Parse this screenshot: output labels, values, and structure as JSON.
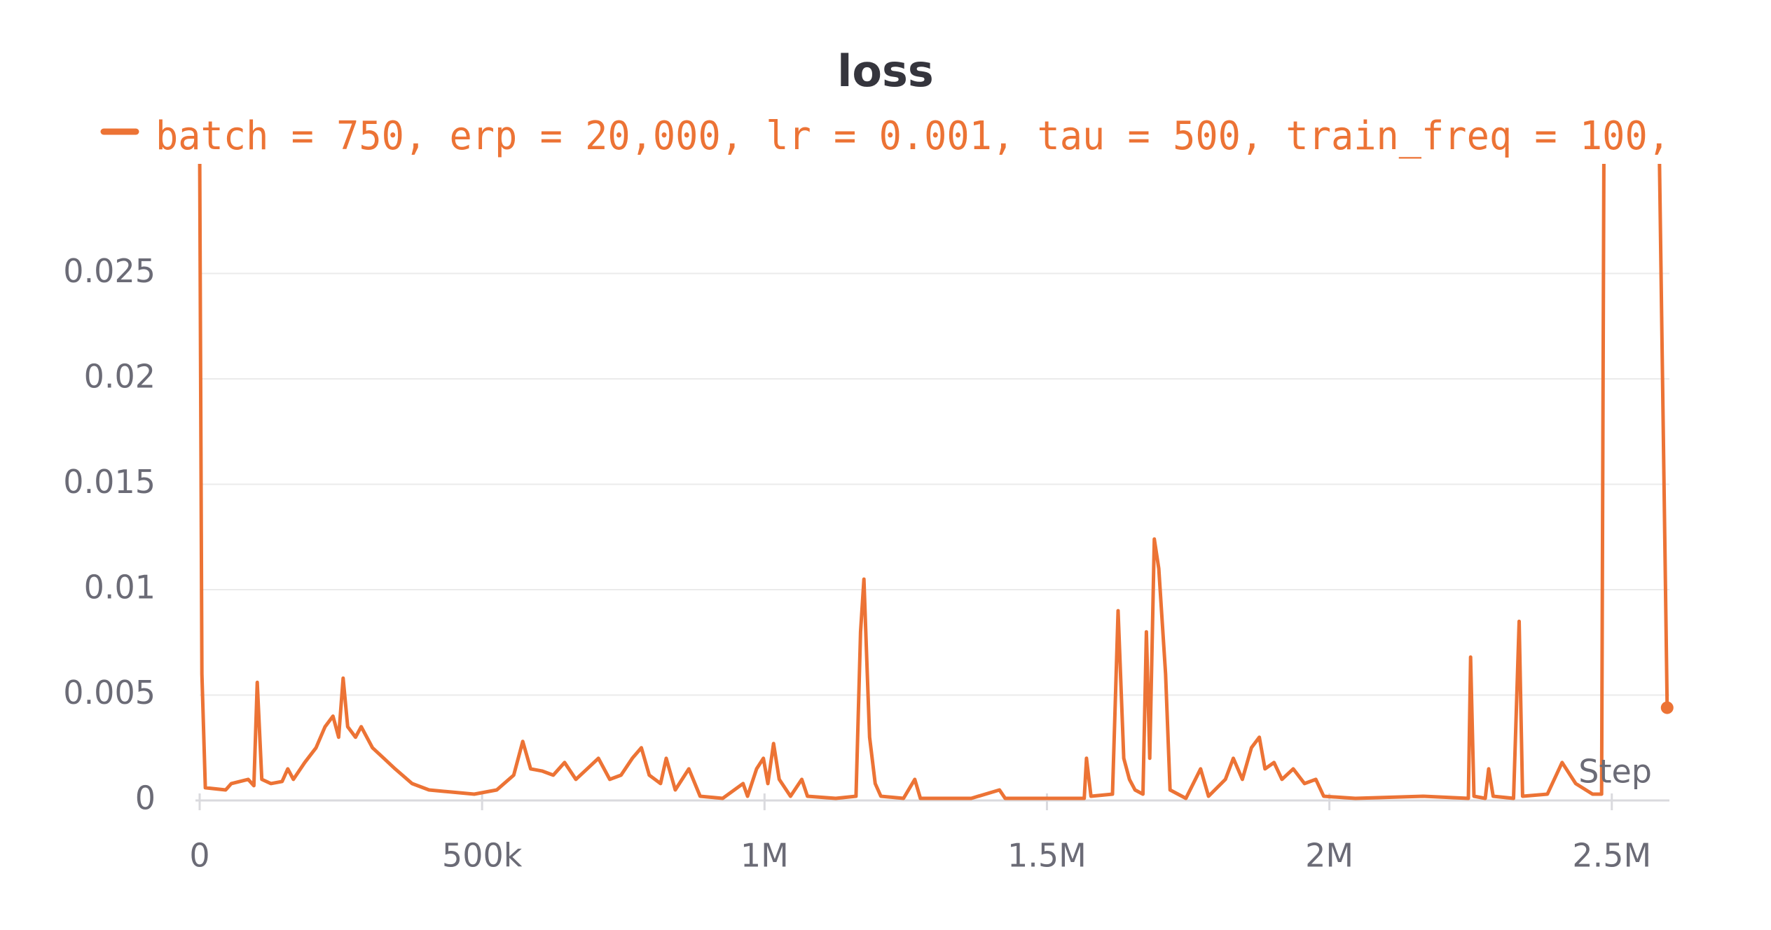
{
  "chart_data": {
    "type": "line",
    "title": "loss",
    "x_label": "Step",
    "xlim": [
      0,
      2602000
    ],
    "ylim": [
      0,
      0.0302
    ],
    "xticks": [
      0,
      {
        "value": 500000,
        "label": "500k"
      },
      {
        "value": 1000000,
        "label": "1M"
      },
      {
        "value": 1500000,
        "label": "1.5M"
      },
      {
        "value": 2000000,
        "label": "2M"
      },
      {
        "value": 2500000,
        "label": "2.5M"
      }
    ],
    "yticks": [
      0,
      0.005,
      0.01,
      0.015,
      0.02,
      0.025
    ],
    "grid": true,
    "legend": "top",
    "x": [
      0,
      4000,
      10000,
      46000,
      56000,
      86000,
      96000,
      102000,
      110000,
      126000,
      146000,
      156000,
      166000,
      186000,
      206000,
      222000,
      236000,
      246000,
      254000,
      262000,
      276000,
      286000,
      306000,
      326000,
      346000,
      376000,
      406000,
      446000,
      486000,
      526000,
      556000,
      572000,
      586000,
      606000,
      626000,
      646000,
      666000,
      686000,
      706000,
      726000,
      746000,
      766000,
      782000,
      796000,
      816000,
      826000,
      842000,
      866000,
      886000,
      926000,
      962000,
      970000,
      986000,
      998000,
      1006000,
      1016000,
      1026000,
      1046000,
      1066000,
      1076000,
      1126000,
      1162000,
      1170000,
      1176000,
      1182000,
      1186000,
      1196000,
      1206000,
      1246000,
      1266000,
      1276000,
      1366000,
      1416000,
      1426000,
      1566000,
      1570000,
      1578000,
      1616000,
      1626000,
      1636000,
      1646000,
      1656000,
      1670000,
      1676000,
      1682000,
      1690000,
      1698000,
      1710000,
      1718000,
      1746000,
      1772000,
      1786000,
      1816000,
      1830000,
      1846000,
      1862000,
      1876000,
      1886000,
      1902000,
      1916000,
      1936000,
      1956000,
      1976000,
      1990000,
      2046000,
      2166000,
      2246000,
      2250000,
      2256000,
      2276000,
      2282000,
      2290000,
      2326000,
      2336000,
      2342000,
      2386000,
      2412000,
      2436000,
      2466000,
      2482000,
      2486000,
      2536000,
      2584000,
      2598000
    ],
    "series": [
      {
        "name": "batch = 750, erp = 20,000, lr = 0.001, tau = 500, train_freq = 100,",
        "color": "#ec7335",
        "values": [
          0.031,
          0.006,
          0.0006,
          0.0005,
          0.0008,
          0.001,
          0.0007,
          0.0056,
          0.001,
          0.0008,
          0.0009,
          0.0015,
          0.001,
          0.0018,
          0.0025,
          0.0035,
          0.004,
          0.003,
          0.0058,
          0.0035,
          0.003,
          0.0035,
          0.0025,
          0.002,
          0.0015,
          0.0008,
          0.0005,
          0.0004,
          0.0003,
          0.0005,
          0.0012,
          0.0028,
          0.0015,
          0.0014,
          0.0012,
          0.0018,
          0.001,
          0.0015,
          0.002,
          0.001,
          0.0012,
          0.002,
          0.0025,
          0.0012,
          0.0008,
          0.002,
          0.0005,
          0.0015,
          0.0002,
          0.0001,
          0.0008,
          0.0002,
          0.0015,
          0.002,
          0.0008,
          0.0027,
          0.001,
          0.0002,
          0.001,
          0.0002,
          0.0001,
          0.0002,
          0.008,
          0.0105,
          0.006,
          0.003,
          0.0008,
          0.0002,
          0.0001,
          0.001,
          0.0001,
          0.0001,
          0.0005,
          0.0001,
          0.0001,
          0.002,
          0.0002,
          0.0003,
          0.009,
          0.002,
          0.001,
          0.0005,
          0.0003,
          0.008,
          0.002,
          0.0124,
          0.011,
          0.006,
          0.0005,
          0.0001,
          0.0015,
          0.0002,
          0.001,
          0.002,
          0.001,
          0.0025,
          0.003,
          0.0015,
          0.0018,
          0.001,
          0.0015,
          0.0008,
          0.001,
          0.0002,
          0.0001,
          0.0002,
          0.0001,
          0.0068,
          0.0002,
          0.0001,
          0.0015,
          0.0002,
          0.0001,
          0.0085,
          0.0002,
          0.0003,
          0.0018,
          0.0008,
          0.0003,
          0.0003,
          0.031,
          null,
          0.031,
          0.0044
        ]
      }
    ]
  }
}
